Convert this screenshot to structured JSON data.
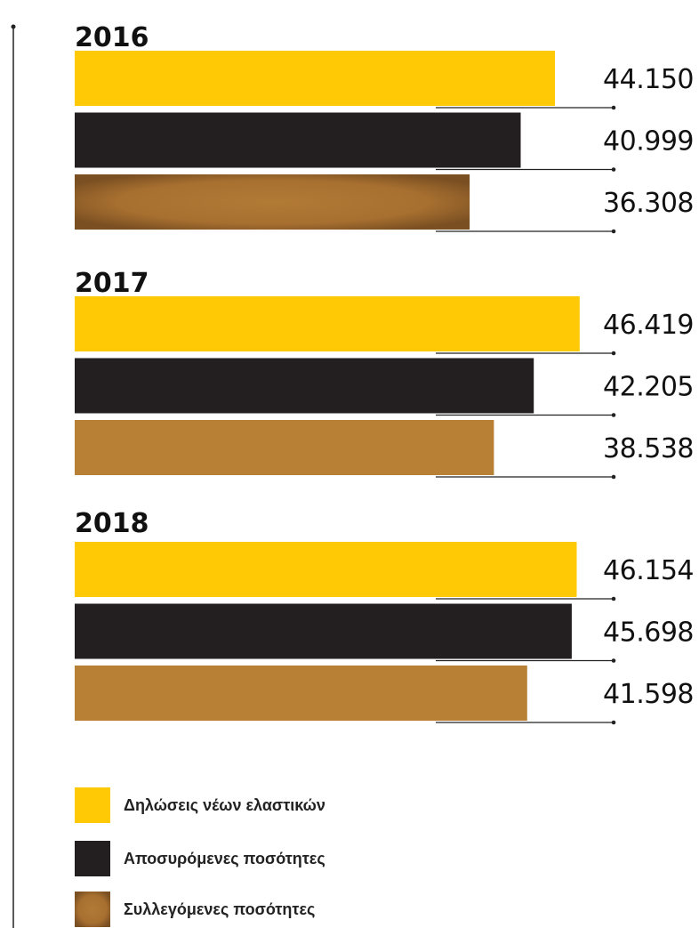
{
  "chart_data": {
    "type": "bar",
    "orientation": "horizontal",
    "groups": [
      "2016",
      "2017",
      "2018"
    ],
    "series": [
      {
        "name": "Δηλώσεις νέων ελαστικών",
        "color": "#ffc905",
        "values": [
          44150,
          46419,
          46154
        ]
      },
      {
        "name": "Αποσυρόμενες ποσότητες",
        "color": "#231f20",
        "values": [
          40999,
          42205,
          45698
        ]
      },
      {
        "name": "Συλλεγόμενες ποσότητες",
        "color": "#b88035",
        "values": [
          36308,
          38538,
          41598
        ]
      }
    ],
    "value_labels": [
      [
        "44.150",
        "40.999",
        "36.308"
      ],
      [
        "46.419",
        "42.205",
        "38.538"
      ],
      [
        "46.154",
        "45.698",
        "41.598"
      ]
    ],
    "xlim": [
      0,
      56000
    ],
    "grid": false,
    "legend_position": "bottom-left"
  }
}
